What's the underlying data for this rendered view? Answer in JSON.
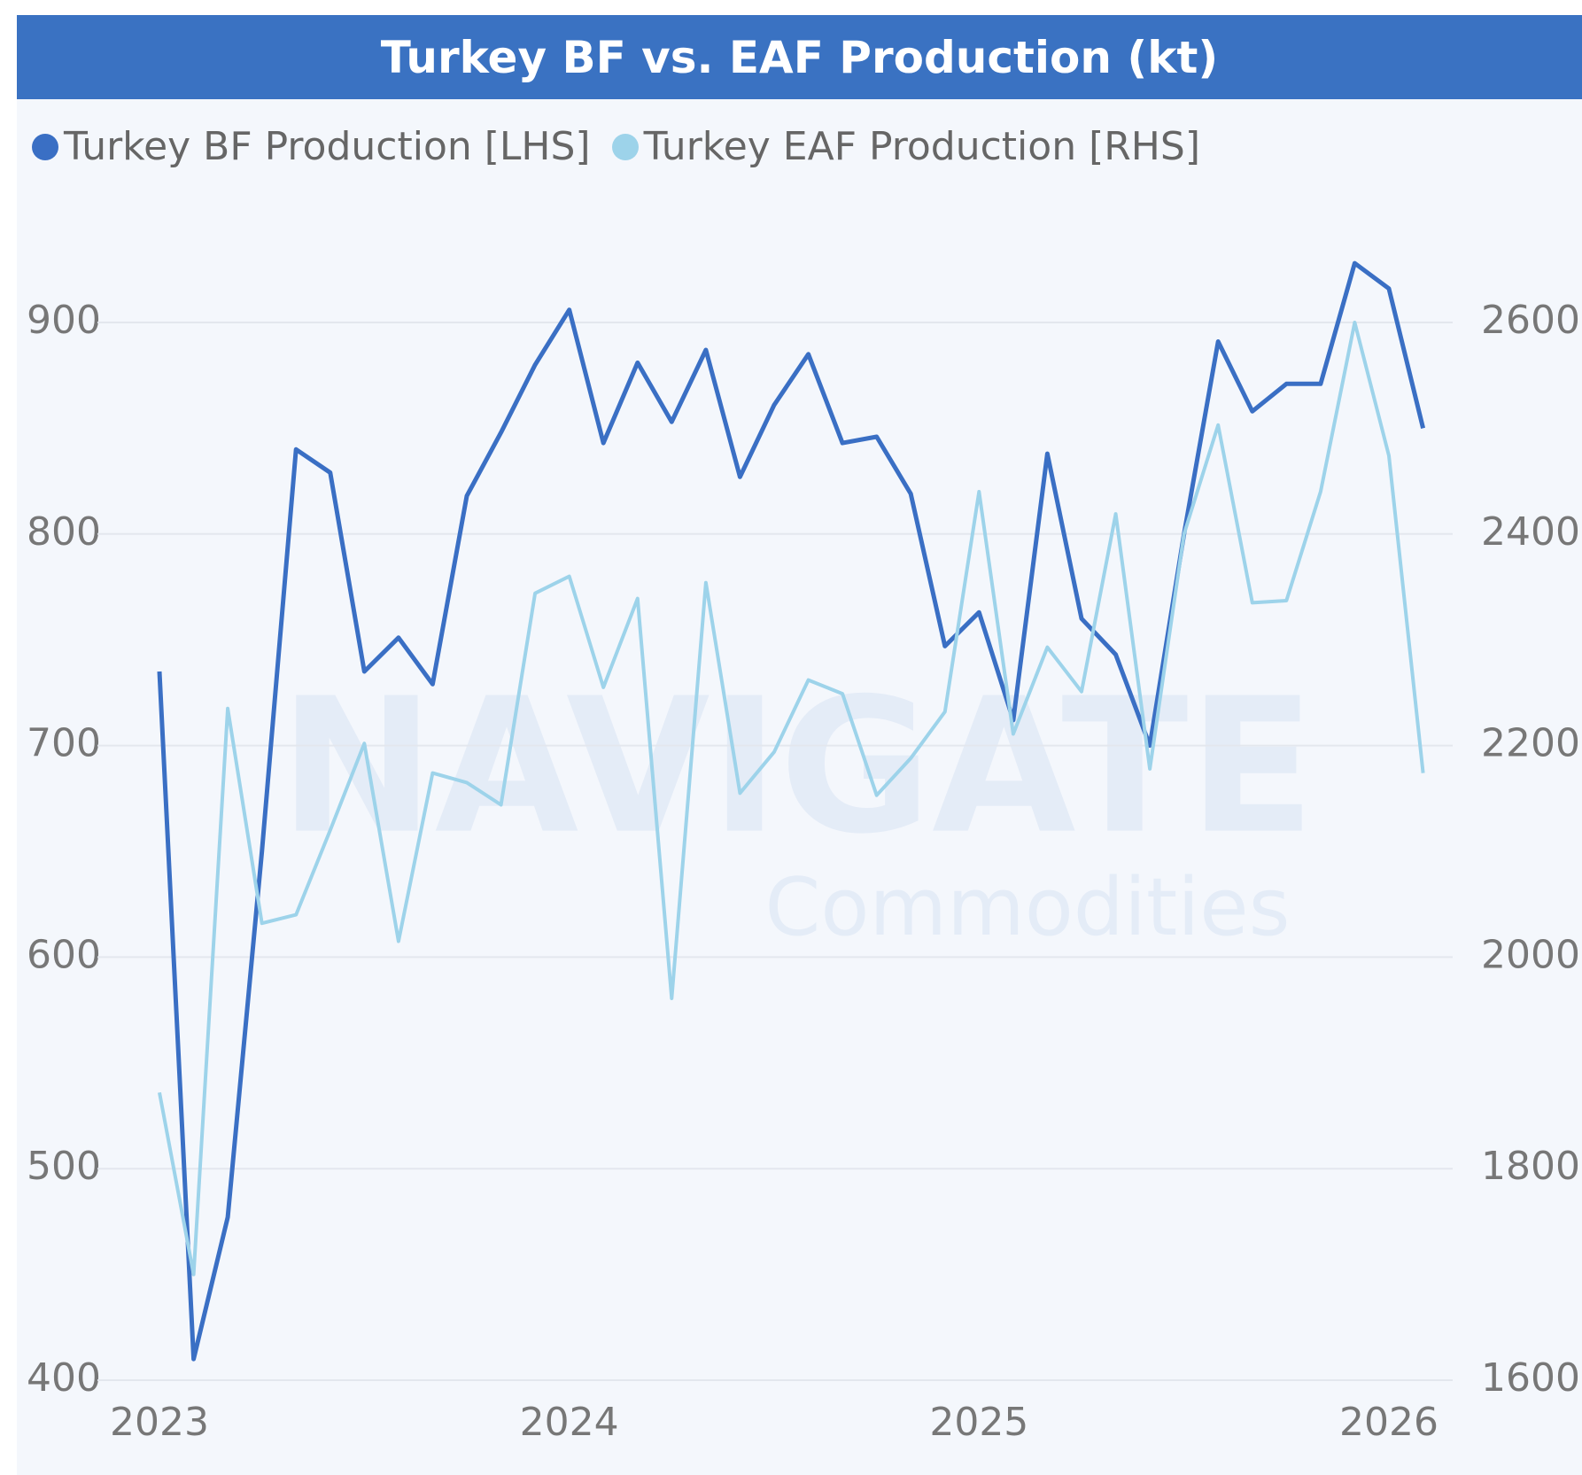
{
  "chart_data": {
    "type": "line",
    "title": "Turkey BF vs. EAF Production (kt)",
    "watermark": [
      "NAVIGATE",
      "Commodities"
    ],
    "x": [
      "2023-01",
      "2023-02",
      "2023-03",
      "2023-04",
      "2023-05",
      "2023-06",
      "2023-07",
      "2023-08",
      "2023-09",
      "2023-10",
      "2023-11",
      "2023-12",
      "2024-01",
      "2024-02",
      "2024-03",
      "2024-04",
      "2024-05",
      "2024-06",
      "2024-07",
      "2024-08",
      "2024-09",
      "2024-10",
      "2024-11",
      "2024-12",
      "2025-01",
      "2025-02",
      "2025-03",
      "2025-04",
      "2025-05",
      "2025-06",
      "2025-07",
      "2025-08",
      "2025-09",
      "2025-10",
      "2025-11",
      "2025-12",
      "2026-01",
      "2026-02"
    ],
    "xticks": [
      2023,
      2024,
      2025,
      2026
    ],
    "series": [
      {
        "name": "Turkey BF Production [LHS]",
        "color": "#3a6fc4",
        "axis": "y",
        "values": [
          735,
          410,
          477,
          650,
          840,
          829,
          735,
          751,
          729,
          818,
          848,
          880,
          906,
          843,
          881,
          853,
          887,
          827,
          861,
          885,
          843,
          846,
          819,
          747,
          763,
          712,
          838,
          760,
          743,
          700,
          800,
          891,
          858,
          871,
          871,
          928,
          916,
          850
        ]
      },
      {
        "name": "Turkey EAF Production [RHS]",
        "color": "#9dd3ea",
        "axis": "y2",
        "values": [
          1872,
          1700,
          2235,
          2032,
          2040,
          2120,
          2202,
          2015,
          2174,
          2165,
          2144,
          2344,
          2360,
          2255,
          2339,
          1961,
          2354,
          2155,
          2194,
          2262,
          2249,
          2153,
          2188,
          2232,
          2440,
          2211,
          2293,
          2251,
          2419,
          2178,
          2400,
          2503,
          2335,
          2337,
          2440,
          2600,
          2474,
          2174
        ]
      }
    ],
    "ylim": [
      400,
      950
    ],
    "yticks": [
      400,
      500,
      600,
      700,
      800,
      900
    ],
    "y2lim": [
      1600,
      2700
    ],
    "y2ticks": [
      1600,
      1800,
      2000,
      2200,
      2400,
      2600
    ],
    "grid": true,
    "legend": "top-left"
  }
}
